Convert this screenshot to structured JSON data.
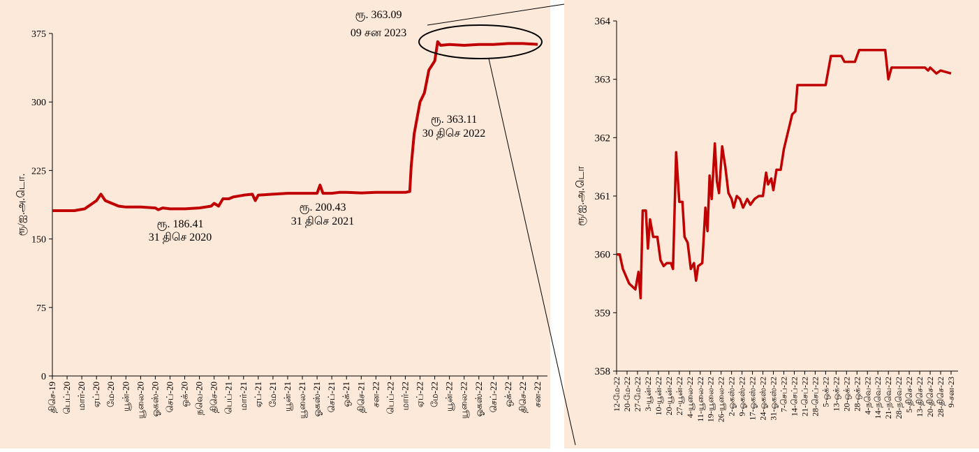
{
  "colors": {
    "background": "#fde9d9",
    "line": "#c00000",
    "axis": "#000000",
    "gridline": "none"
  },
  "chart_data": [
    {
      "type": "line",
      "title": "",
      "ylabel": "ரூ/ஐ.அ.டொ.",
      "ylim": [
        0,
        375
      ],
      "yticks": [
        0,
        75,
        150,
        225,
        300,
        375
      ],
      "grid": false,
      "legend": "none",
      "categories": [
        "திசெ-19",
        "பெப்-20",
        "மார்-20",
        "ஏப்-20",
        "மே-20",
        "யூன்-20",
        "யூலை-20",
        "ஓகஸ்-20",
        "செப்-20",
        "ஒக்-20",
        "நவெ-20",
        "திசெ-20",
        "பெப்-21",
        "மார்-21",
        "ஏப்-21",
        "மே-21",
        "யூன்-21",
        "யூலை-21",
        "ஓகஸ்-21",
        "செப்-21",
        "ஒக்-21",
        "திசெ-21",
        "சன-22",
        "பெப்-22",
        "மார்-22",
        "ஏப்-22",
        "மே-22",
        "யூன்-22",
        "யூலை-22",
        "ஓகஸ்-22",
        "செப்-22",
        "ஒக்-22",
        "திசெ-22",
        "சன-22"
      ],
      "series": [
        {
          "values": [
            [
              0,
              181
            ],
            [
              1.5,
              181
            ],
            [
              2.2,
              183
            ],
            [
              3,
              192
            ],
            [
              3.3,
              199
            ],
            [
              3.6,
              192
            ],
            [
              4.5,
              186
            ],
            [
              5,
              185
            ],
            [
              6,
              185
            ],
            [
              7,
              184
            ],
            [
              7.2,
              182
            ],
            [
              7.5,
              184
            ],
            [
              8,
              183
            ],
            [
              9,
              183
            ],
            [
              10,
              184
            ],
            [
              10.8,
              186
            ],
            [
              11,
              189
            ],
            [
              11.3,
              186
            ],
            [
              11.6,
              194
            ],
            [
              12,
              194
            ],
            [
              12.3,
              196
            ],
            [
              13,
              198
            ],
            [
              13.6,
              199
            ],
            [
              13.8,
              192
            ],
            [
              14,
              198
            ],
            [
              15,
              199
            ],
            [
              16,
              200
            ],
            [
              17,
              200
            ],
            [
              18,
              200
            ],
            [
              18.2,
              209
            ],
            [
              18.4,
              200
            ],
            [
              19,
              200
            ],
            [
              19.5,
              201
            ],
            [
              20,
              201
            ],
            [
              21,
              200.4
            ],
            [
              22,
              201
            ],
            [
              23,
              201
            ],
            [
              24,
              201
            ],
            [
              24.3,
              202
            ],
            [
              24.4,
              230
            ],
            [
              24.6,
              265
            ],
            [
              25,
              300
            ],
            [
              25.3,
              310
            ],
            [
              25.6,
              335
            ],
            [
              26,
              345
            ],
            [
              26.2,
              366
            ],
            [
              26.4,
              362
            ],
            [
              27,
              363
            ],
            [
              28,
              362
            ],
            [
              29,
              363
            ],
            [
              30,
              363
            ],
            [
              31,
              364
            ],
            [
              32,
              364
            ],
            [
              33,
              363.1
            ]
          ]
        }
      ],
      "annotations": [
        {
          "label": "ரூ.  186.41",
          "date": "31  திசெ  2020",
          "x": 11,
          "y": 186.41
        },
        {
          "label": "ரூ.  200.43",
          "date": "31  திசெ  2021",
          "x": 21,
          "y": 200.43
        },
        {
          "label": "ரூ.  363.11",
          "date": "30  திசெ  2022",
          "x": 31,
          "y": 363.11
        },
        {
          "label": "ரூ.  363.09",
          "date": "09  சன  2023",
          "x": 33,
          "y": 363.09
        }
      ]
    },
    {
      "type": "line",
      "title": "",
      "ylabel": "ரூ/ஐ.அ.டொ",
      "ylim": [
        358,
        364
      ],
      "yticks": [
        358,
        359,
        360,
        361,
        362,
        363,
        364
      ],
      "grid": false,
      "legend": "none",
      "categories": [
        "12-மே-22",
        "20-மே-22",
        "27-மே-22",
        "3-யூன்-22",
        "10-யூன்-22",
        "20-யூன்-22",
        "27-யூன்-22",
        "4-யூலை-22",
        "11-யூலை-22",
        "19-யூலை-22",
        "26-யூலை-22",
        "2-ஓகஸ்-22",
        "9-ஓகஸ்-22",
        "17-ஓகஸ்-22",
        "24-ஓகஸ்-22",
        "31-ஓகஸ்-22",
        "7-செப்-22",
        "14-செப்-22",
        "21-செப்-22",
        "28-செப்-22",
        "5-ஒக்-22",
        "13-ஒக்-22",
        "20-ஒக்-22",
        "28-ஒக்-22",
        "4-நவெ-22",
        "14-நவெ-22",
        "21-நவெ-22",
        "28-நவெ-22",
        "5-திசெ-22",
        "13-திசெ-22",
        "20-திசெ-22",
        "28-திசெ-22",
        "9-சன-23"
      ],
      "series": [
        {
          "values": [
            [
              0,
              360
            ],
            [
              0.3,
              360
            ],
            [
              0.6,
              359.75
            ],
            [
              1.2,
              359.5
            ],
            [
              1.8,
              359.4
            ],
            [
              2.1,
              359.7
            ],
            [
              2.3,
              359.25
            ],
            [
              2.5,
              360.75
            ],
            [
              2.8,
              360.75
            ],
            [
              3,
              360.1
            ],
            [
              3.2,
              360.6
            ],
            [
              3.5,
              360.3
            ],
            [
              3.9,
              360.3
            ],
            [
              4.2,
              359.9
            ],
            [
              4.5,
              359.8
            ],
            [
              4.8,
              359.85
            ],
            [
              5.2,
              359.85
            ],
            [
              5.4,
              359.75
            ],
            [
              5.7,
              361.75
            ],
            [
              6,
              360.9
            ],
            [
              6.3,
              360.9
            ],
            [
              6.5,
              360.3
            ],
            [
              6.8,
              360.2
            ],
            [
              7.1,
              359.75
            ],
            [
              7.4,
              359.85
            ],
            [
              7.6,
              359.55
            ],
            [
              7.8,
              359.8
            ],
            [
              8.2,
              359.85
            ],
            [
              8.5,
              360.8
            ],
            [
              8.7,
              360.4
            ],
            [
              8.9,
              361.35
            ],
            [
              9.1,
              360.95
            ],
            [
              9.4,
              361.9
            ],
            [
              9.6,
              361.25
            ],
            [
              9.8,
              361.05
            ],
            [
              10.1,
              361.85
            ],
            [
              10.4,
              361.5
            ],
            [
              10.7,
              361.05
            ],
            [
              11,
              360.95
            ],
            [
              11.2,
              360.8
            ],
            [
              11.5,
              361
            ],
            [
              11.8,
              360.95
            ],
            [
              12.1,
              360.8
            ],
            [
              12.5,
              360.95
            ],
            [
              12.8,
              360.85
            ],
            [
              13.2,
              360.95
            ],
            [
              13.6,
              361
            ],
            [
              14,
              361
            ],
            [
              14.3,
              361.4
            ],
            [
              14.5,
              361.2
            ],
            [
              14.8,
              361.3
            ],
            [
              15,
              361.1
            ],
            [
              15.3,
              361.45
            ],
            [
              15.7,
              361.45
            ],
            [
              16,
              361.8
            ],
            [
              16.4,
              362.1
            ],
            [
              16.8,
              362.4
            ],
            [
              17.1,
              362.45
            ],
            [
              17.3,
              362.9
            ],
            [
              19,
              362.9
            ],
            [
              20,
              362.9
            ],
            [
              20.5,
              363.4
            ],
            [
              21.5,
              363.4
            ],
            [
              21.8,
              363.3
            ],
            [
              22.8,
              363.3
            ],
            [
              23.2,
              363.5
            ],
            [
              24,
              363.5
            ],
            [
              25,
              363.5
            ],
            [
              25.7,
              363.5
            ],
            [
              26,
              363.0
            ],
            [
              26.3,
              363.2
            ],
            [
              27,
              363.2
            ],
            [
              28,
              363.2
            ],
            [
              29,
              363.2
            ],
            [
              29.5,
              363.2
            ],
            [
              29.8,
              363.15
            ],
            [
              30,
              363.2
            ],
            [
              30.3,
              363.15
            ],
            [
              30.6,
              363.1
            ],
            [
              31,
              363.15
            ],
            [
              32,
              363.1
            ]
          ]
        }
      ]
    }
  ]
}
